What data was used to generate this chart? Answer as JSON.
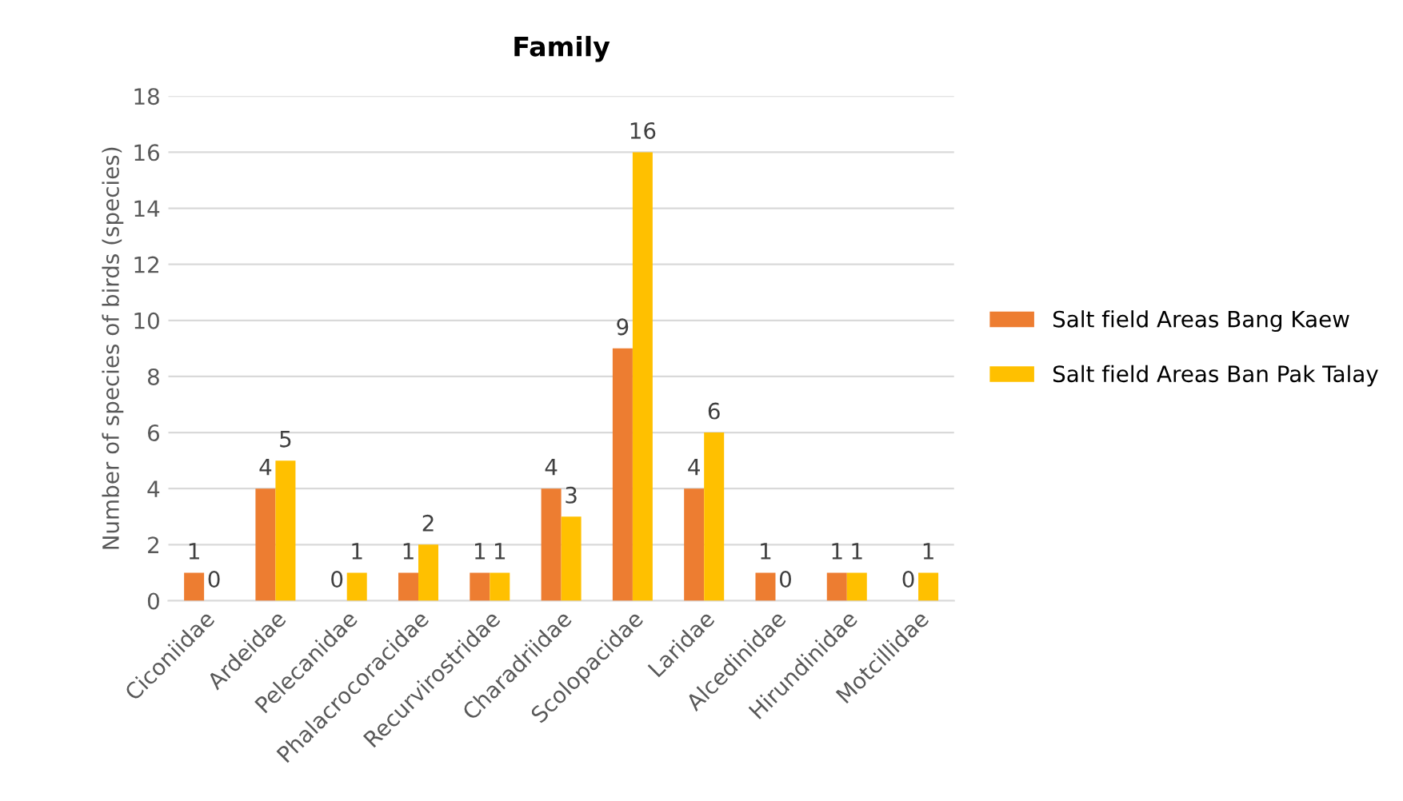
{
  "chart_data": {
    "type": "bar",
    "title": "Family",
    "ylabel": "Number of species of birds (species)",
    "categories": [
      "Ciconiidae",
      "Ardeidae",
      "Pelecanidae",
      "Phalacrocoracidae",
      "Recurvirostridae",
      "Charadriidae",
      "Scolopacidae",
      "Laridae",
      "Alcedinidae",
      "Hirundinidae",
      "Motcillidae"
    ],
    "series": [
      {
        "name": "Salt field Areas Bang Kaew",
        "color": "#ed7d31",
        "values": [
          1,
          4,
          0,
          1,
          1,
          4,
          9,
          4,
          1,
          1,
          0
        ]
      },
      {
        "name": "Salt field Areas Ban Pak Talay",
        "color": "#ffc000",
        "values": [
          0,
          5,
          1,
          2,
          1,
          3,
          16,
          6,
          0,
          1,
          1
        ]
      }
    ],
    "ylim": [
      0,
      18
    ],
    "yticks": [
      0,
      2,
      4,
      6,
      8,
      10,
      12,
      14,
      16,
      18
    ],
    "grid": "y",
    "legend": "right",
    "data_labels": true
  }
}
